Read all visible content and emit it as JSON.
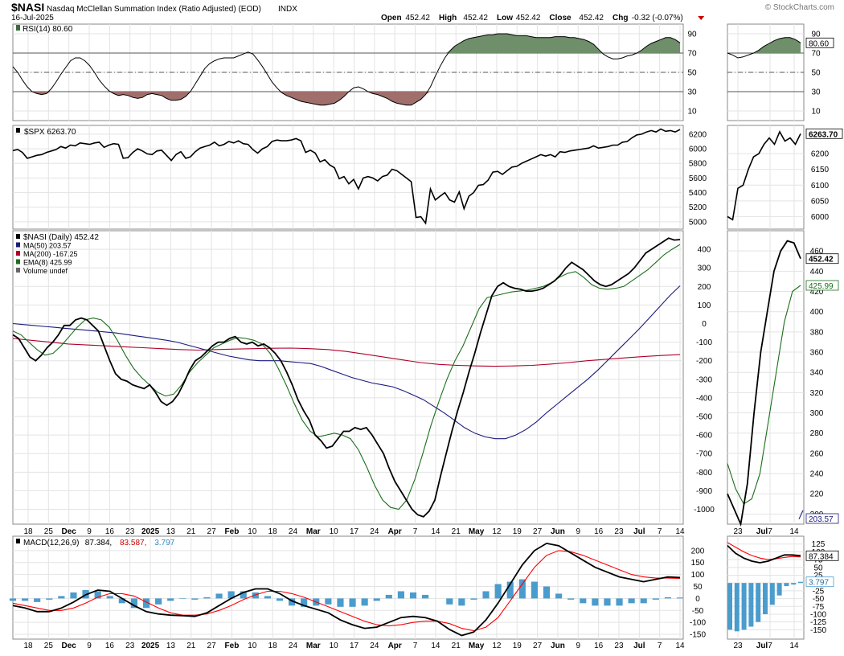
{
  "header": {
    "symbol": "$NASI",
    "description": "Nasdaq McClellan Summation Index (Ratio Adjusted) (EOD)",
    "exchange": "INDX",
    "date": "16-Jul-2025",
    "watermark": "© StockCharts.com",
    "ohlc": [
      {
        "label": "Open",
        "value": "452.42"
      },
      {
        "label": "High",
        "value": "452.42"
      },
      {
        "label": "Low",
        "value": "452.42"
      },
      {
        "label": "Close",
        "value": "452.42"
      },
      {
        "label": "Chg",
        "value": "-0.32 (-0.07%)"
      }
    ],
    "change_color": "#cc0000"
  },
  "x_labels": [
    {
      "t": "18",
      "b": false
    },
    {
      "t": "25",
      "b": false
    },
    {
      "t": "Dec",
      "b": true
    },
    {
      "t": "9",
      "b": false
    },
    {
      "t": "16",
      "b": false
    },
    {
      "t": "23",
      "b": false
    },
    {
      "t": "2025",
      "b": true
    },
    {
      "t": "13",
      "b": false
    },
    {
      "t": "21",
      "b": false
    },
    {
      "t": "27",
      "b": false
    },
    {
      "t": "Feb",
      "b": true
    },
    {
      "t": "10",
      "b": false
    },
    {
      "t": "18",
      "b": false
    },
    {
      "t": "24",
      "b": false
    },
    {
      "t": "Mar",
      "b": true
    },
    {
      "t": "10",
      "b": false
    },
    {
      "t": "17",
      "b": false
    },
    {
      "t": "24",
      "b": false
    },
    {
      "t": "Apr",
      "b": true
    },
    {
      "t": "7",
      "b": false
    },
    {
      "t": "14",
      "b": false
    },
    {
      "t": "21",
      "b": false
    },
    {
      "t": "May",
      "b": true
    },
    {
      "t": "12",
      "b": false
    },
    {
      "t": "19",
      "b": false
    },
    {
      "t": "27",
      "b": false
    },
    {
      "t": "Jun",
      "b": true
    },
    {
      "t": "9",
      "b": false
    },
    {
      "t": "16",
      "b": false
    },
    {
      "t": "23",
      "b": false
    },
    {
      "t": "Jul",
      "b": true
    },
    {
      "t": "7",
      "b": false
    },
    {
      "t": "14",
      "b": false
    }
  ],
  "zoom_x_labels": [
    {
      "t": "23",
      "b": false
    },
    {
      "t": "Jul",
      "b": true
    },
    {
      "t": "7",
      "b": false
    },
    {
      "t": "14",
      "b": false
    }
  ],
  "chart_data": [
    {
      "type": "area",
      "title": "RSI(14) 80.60",
      "last_label": "80.60",
      "ylim": [
        0,
        100
      ],
      "ticks": [
        "90",
        "70",
        "50",
        "30",
        "10"
      ],
      "reference_lines": [
        70,
        50,
        30
      ],
      "overbought_fill": "#6e8f69",
      "oversold_fill": "#a06f6c",
      "values": [
        56,
        50,
        42,
        35,
        30,
        28,
        27,
        28,
        33,
        40,
        48,
        55,
        62,
        65,
        65,
        62,
        57,
        50,
        42,
        36,
        31,
        28,
        26,
        27,
        26,
        24,
        23,
        24,
        27,
        28,
        27,
        26,
        23,
        21,
        21,
        22,
        25,
        30,
        38,
        46,
        54,
        59,
        62,
        64,
        65,
        65,
        65,
        67,
        69,
        71,
        69,
        63,
        56,
        48,
        40,
        34,
        29,
        26,
        24,
        22,
        20,
        19,
        18,
        17,
        16,
        16,
        17,
        18,
        21,
        25,
        30,
        34,
        35,
        33,
        30,
        28,
        27,
        25,
        23,
        20,
        18,
        17,
        16,
        16,
        19,
        22,
        27,
        35,
        46,
        56,
        65,
        72,
        77,
        80,
        83,
        85,
        86,
        87,
        88,
        89,
        89,
        90,
        90,
        90,
        89,
        88,
        88,
        88,
        87,
        86,
        86,
        86,
        86,
        87,
        87,
        87,
        86,
        86,
        85,
        84,
        82,
        79,
        74,
        69,
        66,
        64,
        64,
        65,
        67,
        68,
        70,
        73,
        77,
        80,
        82,
        84,
        86,
        86,
        84,
        80.6
      ]
    },
    {
      "type": "line",
      "title": "$SPX 6263.70",
      "last_label": "6263.70",
      "ylim": [
        4900,
        6320
      ],
      "ticks": [
        "6200",
        "6000",
        "5800",
        "5600",
        "5400",
        "5200",
        "5000"
      ],
      "zoom_ylim": [
        5960,
        6290
      ],
      "zoom_ticks": [
        "6200",
        "6150",
        "6100",
        "6050",
        "6000"
      ],
      "values": [
        5975,
        5990,
        5950,
        5870,
        5890,
        5910,
        5920,
        5950,
        5970,
        5990,
        6030,
        6010,
        6050,
        6040,
        6080,
        6070,
        6060,
        6080,
        6090,
        6020,
        6050,
        6070,
        6060,
        5870,
        5880,
        5950,
        6000,
        5970,
        5930,
        5920,
        5970,
        5980,
        5910,
        5840,
        5920,
        5960,
        5870,
        5890,
        5960,
        6010,
        6030,
        6050,
        6090,
        6040,
        6060,
        6100,
        6080,
        6110,
        6070,
        6060,
        5990,
        5940,
        6000,
        6030,
        6100,
        6120,
        6110,
        6110,
        6120,
        6140,
        6110,
        5950,
        5980,
        5940,
        5820,
        5850,
        5780,
        5740,
        5590,
        5620,
        5520,
        5580,
        5450,
        5600,
        5620,
        5600,
        5560,
        5620,
        5640,
        5720,
        5700,
        5650,
        5600,
        5550,
        5060,
        5070,
        4980,
        5450,
        5300,
        5350,
        5400,
        5300,
        5270,
        5410,
        5180,
        5350,
        5400,
        5500,
        5510,
        5570,
        5680,
        5690,
        5650,
        5700,
        5750,
        5760,
        5800,
        5830,
        5860,
        5890,
        5920,
        5900,
        5920,
        5890,
        5960,
        5950,
        5970,
        5980,
        5990,
        6000,
        6010,
        6040,
        6010,
        6020,
        6030,
        6050,
        6050,
        6090,
        6100,
        6150,
        6190,
        6200,
        6230,
        6250,
        6230,
        6270,
        6240,
        6250,
        6230,
        6263.7
      ]
    },
    {
      "type": "line",
      "title": "$NASI (Daily) 452.42",
      "ylim": [
        -1080,
        500
      ],
      "ticks": [
        "400",
        "300",
        "200",
        "100",
        "0",
        "-100",
        "-200",
        "-300",
        "-400",
        "-500",
        "-600",
        "-700",
        "-800",
        "-900",
        "-1000"
      ],
      "zoom_ylim": [
        190,
        480
      ],
      "zoom_ticks": [
        "460",
        "440",
        "420",
        "400",
        "380",
        "360",
        "340",
        "320",
        "300",
        "280",
        "260",
        "240",
        "220",
        "200"
      ],
      "legend": [
        {
          "name": "$NASI (Daily) 452.42",
          "color": "#000000"
        },
        {
          "name": "MA(50) 203.57",
          "color": "#1a1a80"
        },
        {
          "name": "MA(200) -167.25",
          "color": "#b0002a"
        },
        {
          "name": "EMA(8) 425.99",
          "color": "#1a6e1a"
        },
        {
          "name": "Volume undef",
          "color": "#666666"
        }
      ],
      "series": [
        {
          "name": "$NASI",
          "values": [
            -60,
            -80,
            -130,
            -180,
            -200,
            -170,
            -130,
            -100,
            -60,
            -10,
            -10,
            20,
            30,
            20,
            -10,
            -40,
            -120,
            -200,
            -270,
            -300,
            -310,
            -330,
            -340,
            -350,
            -330,
            -370,
            -420,
            -440,
            -420,
            -380,
            -320,
            -250,
            -200,
            -180,
            -150,
            -120,
            -100,
            -100,
            -80,
            -70,
            -100,
            -110,
            -100,
            -120,
            -110,
            -130,
            -160,
            -200,
            -260,
            -330,
            -410,
            -470,
            -520,
            -600,
            -630,
            -670,
            -660,
            -620,
            -580,
            -580,
            -560,
            -570,
            -560,
            -600,
            -650,
            -700,
            -780,
            -850,
            -900,
            -950,
            -1000,
            -1030,
            -1040,
            -1010,
            -950,
            -820,
            -700,
            -580,
            -470,
            -370,
            -260,
            -160,
            -50,
            50,
            150,
            200,
            220,
            200,
            190,
            185,
            175,
            175,
            180,
            190,
            210,
            230,
            260,
            300,
            330,
            310,
            290,
            260,
            230,
            210,
            200,
            210,
            230,
            250,
            270,
            300,
            340,
            380,
            400,
            420,
            440,
            460,
            450,
            452.42
          ]
        },
        {
          "name": "MA(50)",
          "values": [
            0,
            -5,
            -10,
            -15,
            -20,
            -25,
            -30,
            -35,
            -40,
            -45,
            -50,
            -58,
            -66,
            -74,
            -82,
            -90,
            -100,
            -115,
            -130,
            -145,
            -160,
            -175,
            -185,
            -195,
            -200,
            -200,
            -200,
            -205,
            -210,
            -215,
            -230,
            -250,
            -270,
            -290,
            -305,
            -320,
            -330,
            -340,
            -360,
            -385,
            -410,
            -445,
            -480,
            -520,
            -560,
            -590,
            -610,
            -620,
            -620,
            -600,
            -570,
            -530,
            -480,
            -435,
            -390,
            -345,
            -300,
            -250,
            -195,
            -140,
            -85,
            -30,
            30,
            90,
            150,
            203.57
          ]
        },
        {
          "name": "MA(200)",
          "values": [
            -80,
            -90,
            -100,
            -110,
            -115,
            -120,
            -125,
            -130,
            -135,
            -140,
            -143,
            -140,
            -137,
            -135,
            -133,
            -132,
            -135,
            -140,
            -150,
            -165,
            -180,
            -195,
            -210,
            -220,
            -225,
            -228,
            -230,
            -228,
            -225,
            -218,
            -210,
            -200,
            -192,
            -185,
            -178,
            -172,
            -167.25
          ]
        },
        {
          "name": "EMA(8)",
          "values": [
            -40,
            -60,
            -100,
            -140,
            -170,
            -160,
            -120,
            -70,
            -20,
            20,
            30,
            20,
            -20,
            -90,
            -170,
            -240,
            -290,
            -330,
            -370,
            -390,
            -380,
            -330,
            -260,
            -210,
            -170,
            -130,
            -110,
            -90,
            -75,
            -80,
            -90,
            -110,
            -160,
            -240,
            -330,
            -430,
            -520,
            -580,
            -610,
            -600,
            -590,
            -600,
            -620,
            -680,
            -770,
            -870,
            -950,
            -990,
            -1000,
            -950,
            -840,
            -700,
            -550,
            -420,
            -300,
            -200,
            -120,
            -20,
            80,
            140,
            150,
            160,
            170,
            175,
            180,
            190,
            200,
            220,
            250,
            270,
            280,
            250,
            210,
            190,
            185,
            190,
            200,
            230,
            260,
            290,
            330,
            370,
            400,
            425.99
          ]
        }
      ]
    },
    {
      "type": "line",
      "title": "MACD(12,26,9) 87.384, 83.587, 3.797",
      "macd_label": "MACD(12,26,9)",
      "macd_values": [
        {
          "text": "87.384,",
          "color": "#000000"
        },
        {
          "text": "83.587,",
          "color": "#cc0000"
        },
        {
          "text": "3.797",
          "color": "#2e8bc0"
        }
      ],
      "ylim": [
        -170,
        260
      ],
      "ticks": [
        "200",
        "150",
        "100",
        "50",
        "0",
        "-50",
        "-100",
        "-150"
      ],
      "zoom_ylim": [
        -180,
        150
      ],
      "zoom_ticks": [
        "125",
        "100",
        "75",
        "50",
        "25",
        "0",
        "-25",
        "-50",
        "-75",
        "-100",
        "-125",
        "-150"
      ],
      "series": [
        {
          "name": "MACD",
          "values": [
            -30,
            -40,
            -55,
            -55,
            -40,
            -15,
            15,
            35,
            30,
            0,
            -30,
            -55,
            -65,
            -70,
            -72,
            -75,
            -60,
            -30,
            0,
            25,
            40,
            40,
            20,
            -10,
            -30,
            -45,
            -60,
            -90,
            -110,
            -125,
            -120,
            -100,
            -80,
            -75,
            -80,
            -95,
            -130,
            -155,
            -140,
            -90,
            -20,
            60,
            140,
            200,
            230,
            220,
            190,
            160,
            130,
            110,
            90,
            80,
            70,
            80,
            90,
            87.384
          ]
        },
        {
          "name": "Signal",
          "values": [
            -20,
            -30,
            -40,
            -50,
            -50,
            -40,
            -20,
            5,
            20,
            20,
            10,
            -15,
            -40,
            -60,
            -70,
            -70,
            -65,
            -50,
            -30,
            -5,
            15,
            30,
            30,
            20,
            5,
            -15,
            -35,
            -55,
            -75,
            -95,
            -110,
            -115,
            -110,
            -100,
            -95,
            -95,
            -105,
            -125,
            -135,
            -120,
            -80,
            -10,
            60,
            130,
            180,
            200,
            195,
            180,
            160,
            140,
            120,
            100,
            90,
            85,
            85,
            83.587
          ]
        },
        {
          "name": "Histogram",
          "values": [
            -10,
            -10,
            -15,
            -5,
            10,
            25,
            35,
            30,
            10,
            -20,
            -40,
            -40,
            -25,
            -10,
            -2,
            -5,
            5,
            20,
            30,
            30,
            25,
            10,
            -10,
            -30,
            -35,
            -30,
            -25,
            -35,
            -35,
            -30,
            -10,
            15,
            30,
            25,
            15,
            0,
            -25,
            -30,
            -5,
            30,
            60,
            70,
            80,
            70,
            50,
            20,
            -5,
            -20,
            -30,
            -30,
            -30,
            -20,
            -20,
            -5,
            5,
            3.797
          ]
        }
      ],
      "colors": {
        "macd": "#000000",
        "signal": "#ff0000",
        "histogram": "#4a9ccd"
      }
    }
  ],
  "zoom_series": {
    "rsi": [
      70,
      68,
      65,
      66,
      68,
      70,
      73,
      77,
      80,
      83,
      85,
      86,
      86,
      84,
      80.6
    ],
    "spx": [
      6000,
      5990,
      6090,
      6100,
      6150,
      6190,
      6200,
      6230,
      6250,
      6230,
      6270,
      6240,
      6250,
      6230,
      6263.7
    ],
    "nasi": [
      220,
      205,
      190,
      230,
      300,
      360,
      400,
      440,
      460,
      470,
      468,
      452.42
    ],
    "nasi_ma50": [
      195,
      203.57
    ],
    "nasi_ema8": [
      250,
      225,
      210,
      215,
      240,
      290,
      340,
      390,
      420,
      425.99
    ],
    "macd": [
      120,
      95,
      80,
      70,
      65,
      70,
      80,
      90,
      90,
      87.384
    ],
    "signal": [
      130,
      115,
      100,
      88,
      80,
      75,
      78,
      82,
      85,
      83.587
    ],
    "hist": [
      -150,
      -155,
      -150,
      -140,
      -125,
      -100,
      -70,
      -40,
      -10,
      -5,
      3.797
    ]
  },
  "zoom_last_labels": {
    "rsi": "80.60",
    "spx": "6263.70",
    "nasi": "452.42",
    "ema": "425.99",
    "ma50": "203.57",
    "macd": "87.384",
    "hist": "3.797"
  }
}
